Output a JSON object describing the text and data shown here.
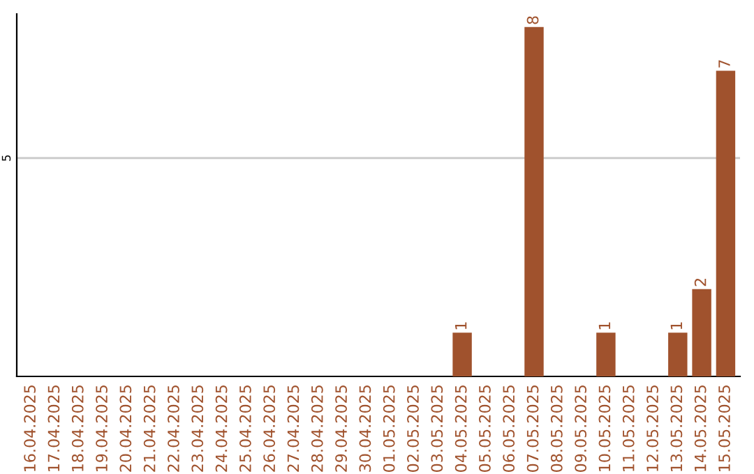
{
  "chart_data": {
    "type": "bar",
    "categories": [
      "16.04.2025",
      "17.04.2025",
      "18.04.2025",
      "19.04.2025",
      "20.04.2025",
      "21.04.2025",
      "22.04.2025",
      "23.04.2025",
      "24.04.2025",
      "25.04.2025",
      "26.04.2025",
      "27.04.2025",
      "28.04.2025",
      "29.04.2025",
      "30.04.2025",
      "01.05.2025",
      "02.05.2025",
      "03.05.2025",
      "04.05.2025",
      "05.05.2025",
      "06.05.2025",
      "07.05.2025",
      "08.05.2025",
      "09.05.2025",
      "10.05.2025",
      "11.05.2025",
      "12.05.2025",
      "13.05.2025",
      "14.05.2025",
      "15.05.2025"
    ],
    "values": [
      null,
      null,
      null,
      null,
      null,
      null,
      null,
      null,
      null,
      null,
      null,
      null,
      null,
      null,
      null,
      null,
      null,
      null,
      1,
      null,
      null,
      8,
      null,
      null,
      1,
      null,
      null,
      1,
      2,
      7
    ],
    "data_labels": true,
    "color": "#a0522d",
    "ylim": [
      0,
      8.3
    ],
    "yticks": [
      5
    ],
    "grid": "y"
  }
}
